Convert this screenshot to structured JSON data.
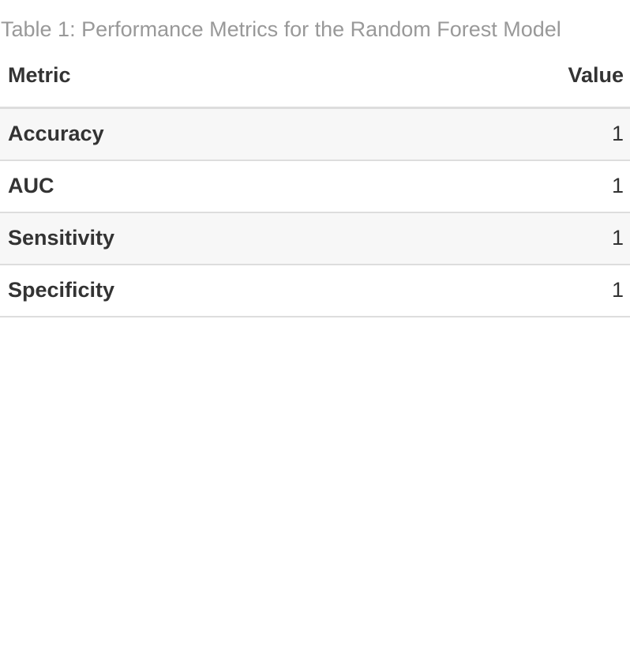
{
  "caption": "Table 1: Performance Metrics for the Random Forest Model",
  "columns": {
    "metric": "Metric",
    "value": "Value"
  },
  "rows": [
    {
      "metric": "Accuracy",
      "value": "1"
    },
    {
      "metric": "AUC",
      "value": "1"
    },
    {
      "metric": "Sensitivity",
      "value": "1"
    },
    {
      "metric": "Specificity",
      "value": "1"
    }
  ],
  "colors": {
    "caption": "#999999",
    "text": "#333333",
    "row_stripe": "#f7f7f7",
    "border": "#dddddd"
  }
}
